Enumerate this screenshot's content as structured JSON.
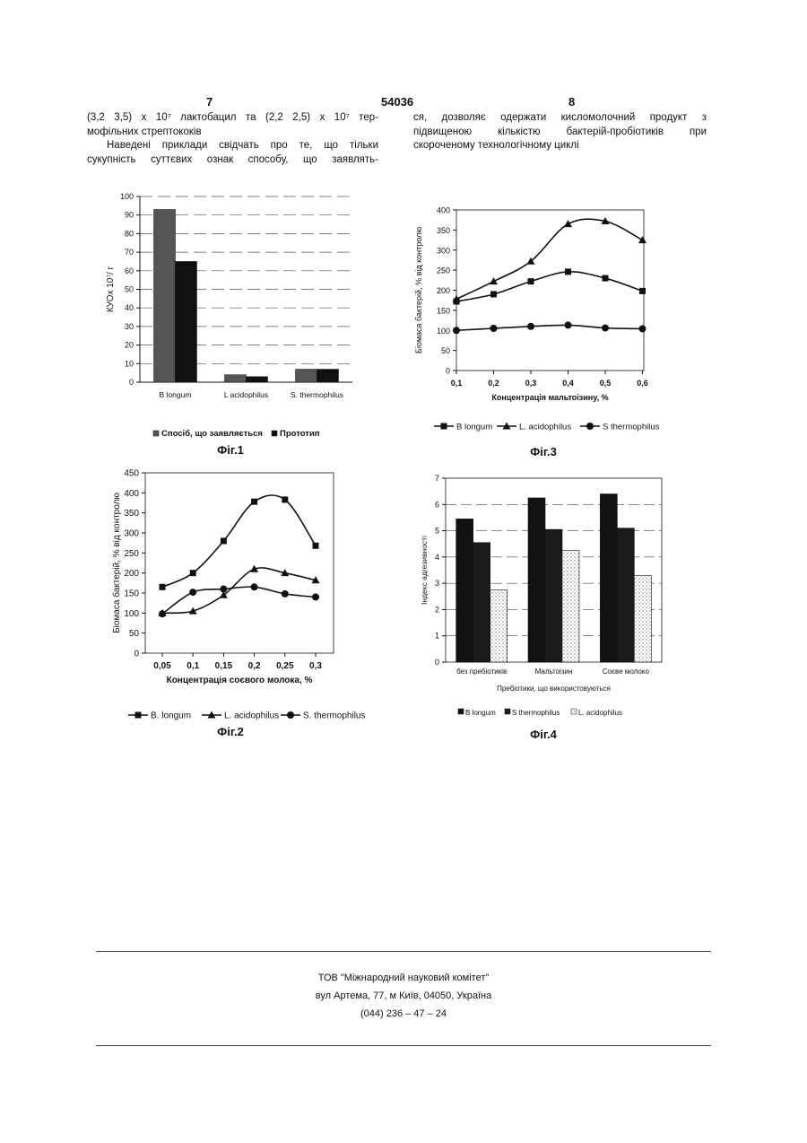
{
  "header": {
    "left_page": "7",
    "patent_number": "54036",
    "right_page": "8"
  },
  "left_column": {
    "line1": "(3,2  3,5) x 10⁷  лактобацил та (2,2  2,5) x 10⁷ тер-",
    "line2": "мофільних стрептококів",
    "line3": "Наведені приклади свідчать про те, що тільки",
    "line4": "сукупність суттєвих ознак способу, що заявлять-"
  },
  "right_column": {
    "line1": "ся, дозволяє одержати кисломолочний продукт з",
    "line2": "підвищеною кількістю бактерій-пробіотиків при",
    "line3": "скороченому технологічному циклі"
  },
  "figures": {
    "fig1": {
      "caption": "Фіг.1",
      "legend": [
        "Спосіб, що заявляється",
        "Прототип"
      ]
    },
    "fig2": {
      "caption": "Фіг.2",
      "legend": [
        "B. longum",
        "L. acidophilus",
        "S. thermophilus"
      ]
    },
    "fig3": {
      "caption": "Фіг.3",
      "legend": [
        "B longum",
        "L. acidophilus",
        "S thermophilus"
      ]
    },
    "fig4": {
      "caption": "Фіг.4",
      "legend": [
        "B longum",
        "S thermophilus",
        "L. acidophilus"
      ]
    }
  },
  "footer": {
    "org": "ТОВ \"Міжнародний науковий комітет\"",
    "address": "вул  Артема, 77, м  Київ, 04050, Україна",
    "phone": "(044) 236 – 47 – 24"
  },
  "chart_data": [
    {
      "id": "fig1",
      "type": "bar",
      "ylabel": "КУОх 10⁷/ г",
      "ylim": [
        0,
        100
      ],
      "yticks": [
        0,
        10,
        20,
        30,
        40,
        50,
        60,
        70,
        80,
        90,
        100
      ],
      "categories": [
        "B longum",
        "L acidophilus",
        "S. thermophilus"
      ],
      "series": [
        {
          "name": "Спосіб, що заявляється",
          "values": [
            93,
            4,
            7
          ],
          "color": "#555555"
        },
        {
          "name": "Прототип",
          "values": [
            65,
            3,
            7
          ],
          "color": "#111111"
        }
      ],
      "grid": true
    },
    {
      "id": "fig2",
      "type": "line",
      "xlabel": "Концентрація соєвого молока, %",
      "ylabel": "Біомаса бактерій, % від контролю",
      "x": [
        "0,05",
        "0,1",
        "0,15",
        "0,2",
        "0,25",
        "0,3"
      ],
      "ylim": [
        0,
        450
      ],
      "yticks": [
        0,
        50,
        100,
        150,
        200,
        250,
        300,
        350,
        400,
        450
      ],
      "series": [
        {
          "name": "B. longum",
          "values": [
            165,
            200,
            280,
            378,
            383,
            268
          ],
          "marker": "square"
        },
        {
          "name": "L. acidophilus",
          "values": [
            100,
            105,
            145,
            210,
            200,
            182
          ],
          "marker": "triangle"
        },
        {
          "name": "S. thermophilus",
          "values": [
            98,
            152,
            160,
            165,
            148,
            140
          ],
          "marker": "circle"
        }
      ],
      "grid": false,
      "legend": "bottom"
    },
    {
      "id": "fig3",
      "type": "line",
      "xlabel": "Концентрація мальтоізину, %",
      "ylabel": "Біомаса бактерій, % від контролю",
      "x": [
        "0,1",
        "0,2",
        "0,3",
        "0,4",
        "0,5",
        "0,6"
      ],
      "ylim": [
        0,
        400
      ],
      "yticks": [
        0,
        50,
        100,
        150,
        200,
        250,
        300,
        350,
        400
      ],
      "series": [
        {
          "name": "B longum",
          "values": [
            172,
            190,
            222,
            246,
            230,
            198
          ],
          "marker": "square"
        },
        {
          "name": "L. acidophilus",
          "values": [
            178,
            222,
            272,
            365,
            372,
            325
          ],
          "marker": "triangle"
        },
        {
          "name": "S thermophilus",
          "values": [
            100,
            105,
            110,
            113,
            106,
            104
          ],
          "marker": "circle"
        }
      ],
      "grid": false,
      "legend": "bottom"
    },
    {
      "id": "fig4",
      "type": "bar",
      "xlabel": "Пребіотики, що використовуються",
      "ylabel": "Індекс адгезивності",
      "ylim": [
        0,
        7
      ],
      "yticks": [
        0,
        1,
        2,
        3,
        4,
        5,
        6,
        7
      ],
      "categories": [
        "без пребіотиків",
        "Мальтоізин",
        "Соєве молоко"
      ],
      "series": [
        {
          "name": "B longum",
          "values": [
            5.45,
            6.25,
            6.4
          ],
          "color": "#111111"
        },
        {
          "name": "S thermophilus",
          "values": [
            4.55,
            5.05,
            5.1
          ],
          "color": "#1a1a1a"
        },
        {
          "name": "L. acidophilus",
          "values": [
            2.75,
            4.25,
            3.3
          ],
          "color": "#cfcfcf"
        }
      ],
      "grid": true,
      "legend": "bottom"
    }
  ]
}
